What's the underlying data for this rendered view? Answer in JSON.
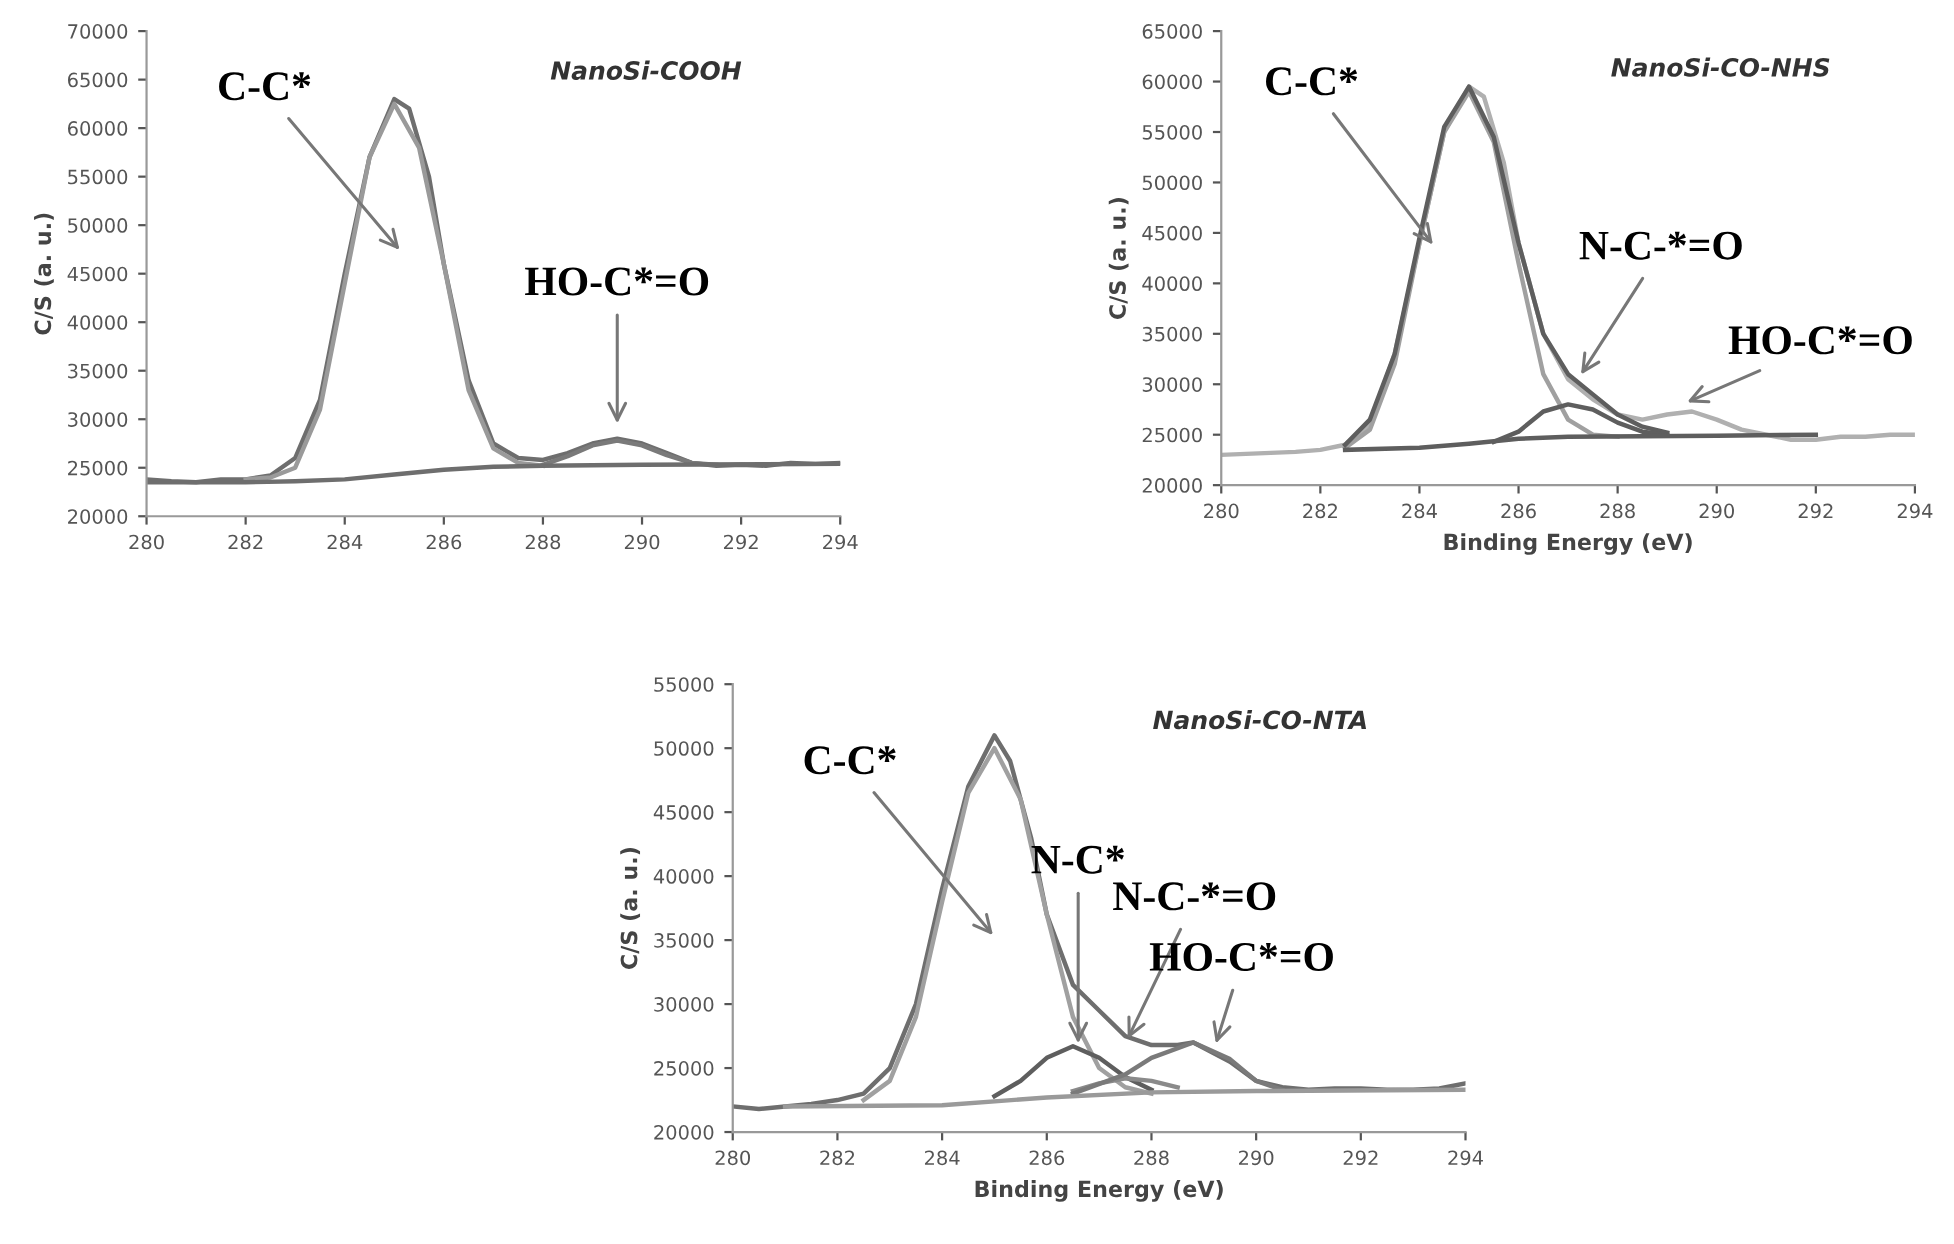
{
  "chart_data": [
    {
      "type": "line",
      "title": "NanoSi-COOH",
      "ylabel": "C/S (a. u.)",
      "xlim": [
        280,
        294
      ],
      "xticks": [
        280,
        282,
        284,
        286,
        288,
        290,
        292,
        294
      ],
      "ylim": [
        20000,
        70000
      ],
      "yticks": [
        20000,
        25000,
        30000,
        35000,
        40000,
        45000,
        50000,
        55000,
        60000,
        65000,
        70000
      ],
      "grid": false,
      "legend": false,
      "series": [
        {
          "color": "#6e6e6e",
          "x": [
            280,
            280.5,
            281,
            281.5,
            282,
            282.5,
            283,
            283.5,
            284,
            284.5,
            285,
            285.3,
            285.7,
            286,
            286.5,
            287,
            287.5,
            288,
            288.5,
            289,
            289.5,
            290,
            290.5,
            291,
            291.5,
            292,
            292.5,
            293,
            293.5,
            294
          ],
          "values": [
            23800,
            23600,
            23500,
            23800,
            23800,
            24200,
            26000,
            32000,
            45000,
            57000,
            63000,
            62000,
            55000,
            46000,
            34000,
            27500,
            26000,
            25800,
            26500,
            27500,
            28000,
            27500,
            26500,
            25500,
            25200,
            25300,
            25200,
            25500,
            25400,
            25500
          ]
        },
        {
          "color": "#9a9a9a",
          "x": [
            282,
            282.5,
            283,
            283.5,
            284,
            284.5,
            285,
            285.5,
            286,
            286.5,
            287,
            287.5,
            288
          ],
          "values": [
            23800,
            24000,
            25000,
            31000,
            44000,
            57000,
            62500,
            58000,
            46000,
            33000,
            27000,
            25500,
            25200
          ]
        },
        {
          "color": "#7a7a7a",
          "x": [
            288,
            288.5,
            289,
            289.5,
            290,
            290.5,
            291,
            291.5
          ],
          "values": [
            25300,
            26200,
            27300,
            27800,
            27300,
            26300,
            25500,
            25300
          ]
        },
        {
          "color": "#6e6e6e",
          "x": [
            280,
            282,
            283,
            284,
            285,
            286,
            287,
            288,
            290,
            294
          ],
          "values": [
            23500,
            23500,
            23600,
            23800,
            24300,
            24800,
            25100,
            25200,
            25300,
            25400
          ]
        }
      ],
      "annotations": [
        "C-C*",
        {
          "text": "HO-C*=O",
          "x": 289.5,
          "y": 29000
        }
      ]
    },
    {
      "type": "line",
      "title": "NanoSi-CO-NHS",
      "ylabel": "C/S (a. u.)",
      "xlabel": "Binding Energy (eV)",
      "xlim": [
        280,
        294
      ],
      "xticks": [
        280,
        282,
        284,
        286,
        288,
        290,
        292,
        294
      ],
      "ylim": [
        20000,
        65000
      ],
      "yticks": [
        20000,
        25000,
        30000,
        35000,
        40000,
        45000,
        50000,
        55000,
        60000,
        65000
      ],
      "grid": false,
      "legend": false,
      "series": [
        {
          "color": "#b0b0b0",
          "x": [
            280,
            280.5,
            281,
            281.5,
            282,
            282.5,
            283,
            283.5,
            284,
            284.5,
            285,
            285.3,
            285.7,
            286,
            286.5,
            287,
            287.5,
            288,
            288.5,
            289,
            289.5,
            290,
            290.5,
            291,
            291.5,
            292,
            292.5,
            293,
            293.5,
            294
          ],
          "values": [
            23000,
            23100,
            23200,
            23300,
            23500,
            24000,
            26000,
            33000,
            44000,
            55000,
            59500,
            58500,
            52000,
            44000,
            35000,
            30500,
            28500,
            27000,
            26500,
            27000,
            27300,
            26500,
            25500,
            25000,
            24500,
            24500,
            24800,
            24800,
            25000,
            25000
          ]
        },
        {
          "color": "#a0a0a0",
          "x": [
            282.5,
            283,
            283.5,
            284,
            284.5,
            285,
            285.5,
            286,
            286.5,
            287,
            287.5,
            288
          ],
          "values": [
            23700,
            25500,
            32000,
            44000,
            55000,
            59000,
            54000,
            42000,
            31000,
            26500,
            25000,
            24800
          ]
        },
        {
          "color": "#5e5e5e",
          "x": [
            282.5,
            283,
            283.5,
            284,
            284.5,
            285,
            285.5,
            286,
            286.5,
            287,
            287.5,
            288,
            288.5,
            289
          ],
          "values": [
            24000,
            26500,
            33000,
            44500,
            55500,
            59500,
            54500,
            44000,
            35000,
            31000,
            29000,
            27000,
            25800,
            25200
          ]
        },
        {
          "color": "#5e5e5e",
          "x": [
            285.5,
            286,
            286.5,
            287,
            287.5,
            288,
            288.5,
            289
          ],
          "values": [
            24300,
            25300,
            27300,
            28000,
            27500,
            26200,
            25300,
            25000
          ]
        },
        {
          "color": "#5e5e5e",
          "x": [
            282.5,
            284,
            285,
            286,
            287,
            290,
            292
          ],
          "values": [
            23500,
            23700,
            24100,
            24600,
            24800,
            24900,
            25000
          ]
        }
      ],
      "annotations": [
        "C-C*",
        {
          "text": "N-C-*=O",
          "x": 287.2,
          "y": 30500
        },
        {
          "text": "HO-C*=O",
          "x": 289.3,
          "y": 28000
        }
      ]
    },
    {
      "type": "line",
      "title": "NanoSi-CO-NTA",
      "ylabel": "C/S (a. u.)",
      "xlabel": "Binding Energy (eV)",
      "xlim": [
        280,
        294
      ],
      "xticks": [
        280,
        282,
        284,
        286,
        288,
        290,
        292,
        294
      ],
      "ylim": [
        20000,
        55000
      ],
      "yticks": [
        20000,
        25000,
        30000,
        35000,
        40000,
        45000,
        50000,
        55000
      ],
      "grid": false,
      "legend": false,
      "series": [
        {
          "color": "#6e6e6e",
          "x": [
            280,
            280.5,
            281,
            281.5,
            282,
            282.5,
            283,
            283.5,
            284,
            284.5,
            285,
            285.3,
            285.7,
            286,
            286.5,
            287,
            287.5,
            288,
            288.5,
            288.8,
            289.5,
            290,
            290.5,
            291,
            291.5,
            292,
            292.5,
            293,
            293.5,
            294
          ],
          "values": [
            22000,
            21800,
            22000,
            22200,
            22500,
            23000,
            25000,
            30000,
            39000,
            47000,
            51000,
            49000,
            43000,
            37000,
            31500,
            29500,
            27500,
            26800,
            26800,
            27000,
            25500,
            24000,
            23500,
            23300,
            23400,
            23400,
            23300,
            23300,
            23400,
            23800
          ]
        },
        {
          "color": "#a0a0a0",
          "x": [
            282.5,
            283,
            283.5,
            284,
            284.5,
            285,
            285.5,
            286,
            286.5,
            287,
            287.5,
            288
          ],
          "values": [
            22500,
            24000,
            29000,
            38000,
            46500,
            50000,
            46000,
            37000,
            29000,
            25000,
            23500,
            23000
          ]
        },
        {
          "color": "#5e5e5e",
          "x": [
            285,
            285.5,
            286,
            286.5,
            287,
            287.5,
            288
          ],
          "values": [
            22800,
            24000,
            25800,
            26700,
            25800,
            24300,
            23300
          ]
        },
        {
          "color": "#8a8a8a",
          "x": [
            286.5,
            287,
            287.5,
            288,
            288.5
          ],
          "values": [
            23200,
            23800,
            24200,
            24000,
            23500
          ]
        },
        {
          "color": "#7a7a7a",
          "x": [
            286.5,
            287.5,
            288,
            288.8,
            289.5,
            290,
            290.5
          ],
          "values": [
            23000,
            24500,
            25800,
            27000,
            25700,
            24000,
            23300
          ]
        },
        {
          "color": "#9a9a9a",
          "x": [
            281,
            284,
            286,
            288,
            290,
            294
          ],
          "values": [
            22000,
            22100,
            22700,
            23100,
            23200,
            23300
          ]
        }
      ],
      "annotations": [
        "C-C*",
        {
          "text": "N-C*",
          "x": 286.6,
          "y": 26500
        },
        {
          "text": "N-C-*=O",
          "x": 287.5,
          "y": 26900
        },
        {
          "text": "HO-C*=O",
          "x": 289.2,
          "y": 26500
        }
      ]
    }
  ]
}
